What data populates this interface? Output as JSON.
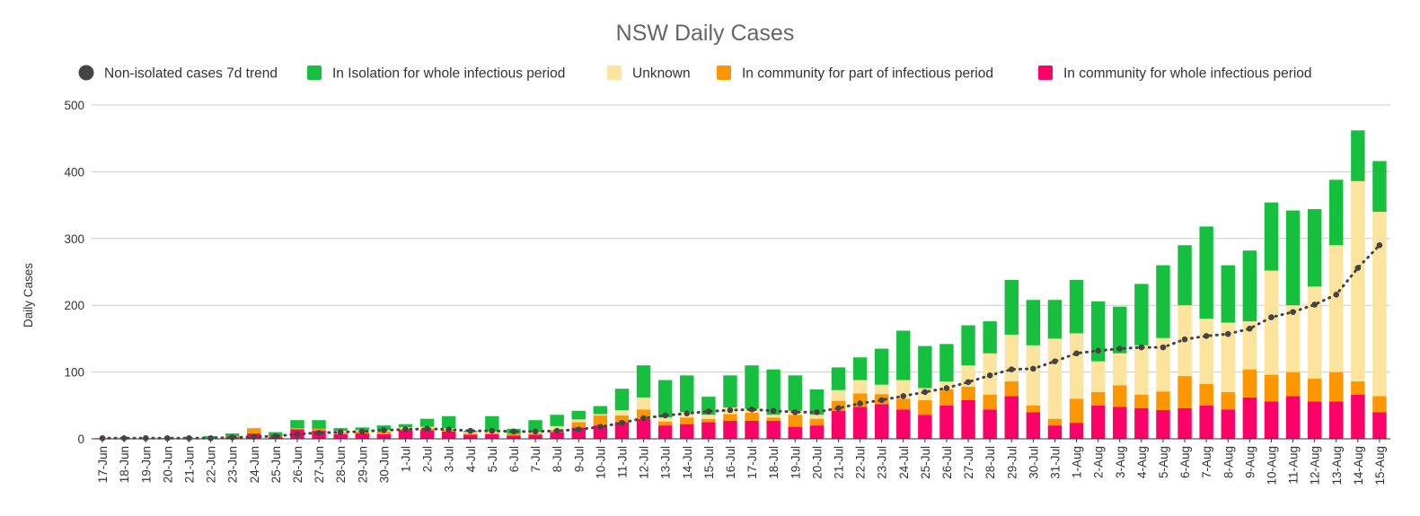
{
  "chart_data": {
    "type": "bar",
    "stacked": true,
    "title": "NSW Daily Cases",
    "ylabel": "Daily Cases",
    "xlabel": "",
    "ylim": [
      0,
      500
    ],
    "yticks": [
      0,
      100,
      200,
      300,
      400,
      500
    ],
    "grid": true,
    "legend_position": "top",
    "legend": [
      {
        "label": "Non-isolated cases 7d trend",
        "color": "#444444",
        "marker": "circle"
      },
      {
        "label": "In Isolation for whole infectious period",
        "color": "#17bf3f",
        "marker": "square"
      },
      {
        "label": "Unknown",
        "color": "#fde49e",
        "marker": "square"
      },
      {
        "label": "In community for part of infectious period",
        "color": "#fe9600",
        "marker": "square"
      },
      {
        "label": "In community for whole infectious period",
        "color": "#fd0068",
        "marker": "square"
      }
    ],
    "categories": [
      "17-Jun",
      "18-Jun",
      "19-Jun",
      "20-Jun",
      "21-Jun",
      "22-Jun",
      "23-Jun",
      "24-Jun",
      "25-Jun",
      "26-Jun",
      "27-Jun",
      "28-Jun",
      "29-Jun",
      "30-Jun",
      "1-Jul",
      "2-Jul",
      "3-Jul",
      "4-Jul",
      "5-Jul",
      "6-Jul",
      "7-Jul",
      "8-Jul",
      "9-Jul",
      "10-Jul",
      "11-Jul",
      "12-Jul",
      "13-Jul",
      "14-Jul",
      "15-Jul",
      "16-Jul",
      "17-Jul",
      "18-Jul",
      "19-Jul",
      "20-Jul",
      "21-Jul",
      "22-Jul",
      "23-Jul",
      "24-Jul",
      "25-Jul",
      "26-Jul",
      "27-Jul",
      "28-Jul",
      "29-Jul",
      "30-Jul",
      "31-Jul",
      "1-Aug",
      "2-Aug",
      "3-Aug",
      "4-Aug",
      "5-Aug",
      "6-Aug",
      "7-Aug",
      "8-Aug",
      "9-Aug",
      "10-Aug",
      "11-Aug",
      "12-Aug",
      "13-Aug",
      "14-Aug",
      "15-Aug"
    ],
    "series": [
      {
        "name": "In community for whole infectious period",
        "color": "#fd0068",
        "values": [
          1,
          1,
          1,
          1,
          0,
          1,
          2,
          8,
          3,
          14,
          12,
          7,
          8,
          7,
          13,
          13,
          11,
          6,
          7,
          5,
          6,
          10,
          17,
          20,
          25,
          30,
          20,
          22,
          25,
          27,
          27,
          27,
          18,
          20,
          42,
          48,
          52,
          44,
          36,
          50,
          58,
          44,
          64,
          40,
          20,
          24,
          50,
          48,
          46,
          43,
          46,
          50,
          44,
          62,
          56,
          64,
          56,
          56,
          66,
          40
        ]
      },
      {
        "name": "In community for part of infectious period",
        "color": "#fe9600",
        "values": [
          0,
          0,
          0,
          0,
          0,
          0,
          2,
          8,
          1,
          2,
          3,
          2,
          3,
          4,
          2,
          2,
          3,
          2,
          2,
          3,
          2,
          3,
          8,
          15,
          10,
          14,
          6,
          10,
          5,
          10,
          12,
          5,
          18,
          10,
          15,
          20,
          15,
          16,
          22,
          24,
          20,
          22,
          22,
          10,
          10,
          36,
          20,
          32,
          20,
          28,
          48,
          32,
          26,
          42,
          40,
          36,
          34,
          44,
          20,
          24
        ]
      },
      {
        "name": "Unknown",
        "color": "#fde49e",
        "values": [
          0,
          0,
          0,
          0,
          0,
          0,
          0,
          0,
          0,
          0,
          0,
          3,
          2,
          2,
          2,
          3,
          2,
          2,
          2,
          0,
          2,
          6,
          4,
          2,
          8,
          18,
          6,
          8,
          6,
          10,
          6,
          4,
          6,
          6,
          16,
          20,
          14,
          28,
          18,
          12,
          32,
          62,
          70,
          90,
          120,
          98,
          46,
          48,
          74,
          80,
          106,
          98,
          104,
          72,
          156,
          100,
          138,
          190,
          300,
          276
        ]
      },
      {
        "name": "In Isolation for whole infectious period",
        "color": "#17bf3f",
        "values": [
          0,
          0,
          0,
          0,
          1,
          3,
          4,
          0,
          6,
          12,
          13,
          4,
          4,
          7,
          5,
          12,
          18,
          2,
          23,
          7,
          18,
          17,
          13,
          12,
          32,
          48,
          56,
          55,
          27,
          48,
          65,
          68,
          53,
          38,
          34,
          34,
          54,
          74,
          63,
          56,
          60,
          48,
          82,
          68,
          58,
          80,
          90,
          70,
          92,
          109,
          90,
          138,
          86,
          106,
          102,
          142,
          116,
          98,
          76,
          76
        ]
      }
    ],
    "trend": {
      "name": "Non-isolated cases 7d trend",
      "color": "#444444",
      "values": [
        1,
        1,
        1,
        1,
        1,
        1,
        2,
        3,
        4,
        7,
        9,
        10,
        11,
        13,
        14,
        15,
        14,
        12,
        12,
        11,
        11,
        12,
        14,
        18,
        24,
        31,
        35,
        38,
        41,
        43,
        44,
        42,
        40,
        40,
        46,
        53,
        58,
        64,
        70,
        76,
        85,
        95,
        104,
        105,
        116,
        128,
        132,
        135,
        137,
        137,
        149,
        154,
        157,
        165,
        182,
        190,
        201,
        216,
        256,
        290
      ]
    }
  }
}
